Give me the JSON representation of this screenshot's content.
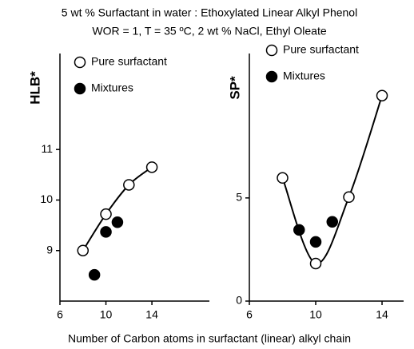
{
  "title": "5 wt % Surfactant in water : Ethoxylated Linear Alkyl Phenol",
  "subtitle": "WOR = 1, T = 35 ºC,  2 wt % NaCl,  Ethyl Oleate",
  "xlabel": "Number of Carbon atoms in surfactant (linear) alkyl chain",
  "chart_data": [
    {
      "type": "scatter",
      "ylabel": "HLB*",
      "xlim": [
        6,
        19
      ],
      "ylim": [
        8,
        12.9
      ],
      "xticks": [
        6,
        10,
        14
      ],
      "yticks": [
        9,
        10,
        11
      ],
      "series": [
        {
          "name": "Pure surfactant",
          "color": "#ffffff",
          "x": [
            8,
            10,
            12,
            14
          ],
          "values": [
            9.0,
            9.72,
            10.3,
            10.65
          ]
        },
        {
          "name": "Mixtures",
          "color": "#000000",
          "x": [
            9,
            10,
            11
          ],
          "values": [
            8.52,
            9.37,
            9.56
          ]
        }
      ]
    },
    {
      "type": "scatter",
      "ylabel": "SP*",
      "xlim": [
        6,
        15.3
      ],
      "ylim": [
        0,
        12
      ],
      "xticks": [
        6,
        10,
        14
      ],
      "yticks": [
        0,
        5
      ],
      "series": [
        {
          "name": "Pure surfactant",
          "color": "#ffffff",
          "x": [
            8,
            10,
            12,
            14
          ],
          "values": [
            5.97,
            1.82,
            5.04,
            9.96
          ]
        },
        {
          "name": "Mixtures",
          "color": "#000000",
          "x": [
            9,
            10,
            11
          ],
          "values": [
            3.45,
            2.87,
            3.84
          ]
        }
      ]
    }
  ]
}
